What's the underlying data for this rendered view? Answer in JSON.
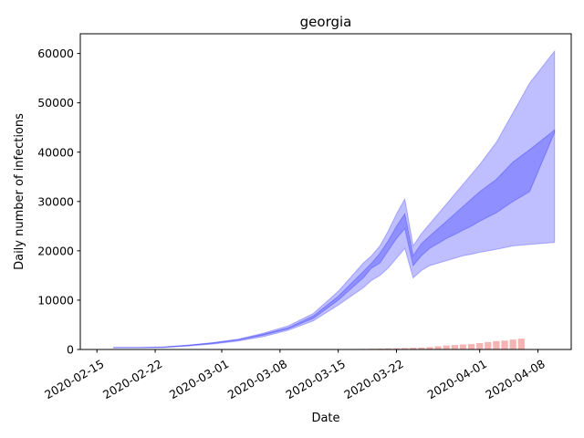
{
  "chart_data": {
    "type": "area",
    "title": "georgia",
    "xlabel": "Date",
    "ylabel": "Daily number of infections",
    "xlim": [
      "2020-02-13",
      "2020-04-12"
    ],
    "ylim": [
      0,
      64000
    ],
    "yticks": [
      0,
      10000,
      20000,
      30000,
      40000,
      50000,
      60000
    ],
    "xticks": [
      "2020-02-15",
      "2020-02-22",
      "2020-03-01",
      "2020-03-08",
      "2020-03-15",
      "2020-03-22",
      "2020-04-01",
      "2020-04-08"
    ],
    "grid": false,
    "colors": {
      "band": "#0000ff",
      "bars": "#f08080"
    },
    "x": [
      "2020-02-17",
      "2020-02-20",
      "2020-02-23",
      "2020-02-26",
      "2020-02-29",
      "2020-03-03",
      "2020-03-06",
      "2020-03-09",
      "2020-03-12",
      "2020-03-15",
      "2020-03-18",
      "2020-03-19",
      "2020-03-20",
      "2020-03-21",
      "2020-03-22",
      "2020-03-23",
      "2020-03-24",
      "2020-03-25",
      "2020-03-26",
      "2020-03-27",
      "2020-03-28",
      "2020-03-29",
      "2020-03-30",
      "2020-03-31",
      "2020-04-01",
      "2020-04-03",
      "2020-04-05",
      "2020-04-07",
      "2020-04-10"
    ],
    "series": [
      {
        "values": [
          350,
          350,
          400,
          700,
          1100,
          1700,
          2600,
          3900,
          5800,
          9000,
          12500,
          14000,
          15000,
          16500,
          18500,
          20500,
          14500,
          16000,
          17000,
          17500,
          18000,
          18500,
          19000,
          19300,
          19700,
          20300,
          21000,
          21300,
          21700
        ]
      },
      {
        "values": [
          380,
          380,
          450,
          800,
          1250,
          1900,
          2900,
          4200,
          6300,
          10000,
          14500,
          16500,
          17500,
          20000,
          22500,
          24500,
          17000,
          19000,
          20500,
          21500,
          22500,
          23300,
          24200,
          25000,
          26000,
          27700,
          30000,
          32000,
          44000
        ]
      },
      {
        "values": [
          400,
          400,
          500,
          850,
          1350,
          2000,
          3100,
          4400,
          6800,
          10800,
          15800,
          17500,
          19500,
          22000,
          25000,
          27500,
          19000,
          21500,
          23000,
          24500,
          26000,
          27500,
          29000,
          30500,
          32000,
          34500,
          38000,
          40500,
          44500
        ]
      },
      {
        "values": [
          420,
          420,
          520,
          900,
          1400,
          2100,
          3300,
          4800,
          7300,
          11800,
          17500,
          19000,
          21000,
          24000,
          27500,
          30500,
          21000,
          23500,
          25500,
          27500,
          29500,
          31500,
          33500,
          35500,
          37500,
          42000,
          48000,
          54000,
          60500
        ]
      }
    ],
    "bars": {
      "x": [
        "2020-03-14",
        "2020-03-15",
        "2020-03-16",
        "2020-03-17",
        "2020-03-18",
        "2020-03-19",
        "2020-03-20",
        "2020-03-21",
        "2020-03-22",
        "2020-03-23",
        "2020-03-24",
        "2020-03-25",
        "2020-03-26",
        "2020-03-27",
        "2020-03-28",
        "2020-03-29",
        "2020-03-30",
        "2020-03-31",
        "2020-04-01",
        "2020-04-02",
        "2020-04-03",
        "2020-04-04",
        "2020-04-05",
        "2020-04-06"
      ],
      "values": [
        50,
        60,
        80,
        100,
        120,
        150,
        180,
        220,
        250,
        300,
        350,
        400,
        500,
        650,
        800,
        900,
        1000,
        1100,
        1300,
        1500,
        1700,
        1800,
        2000,
        2200
      ]
    }
  }
}
